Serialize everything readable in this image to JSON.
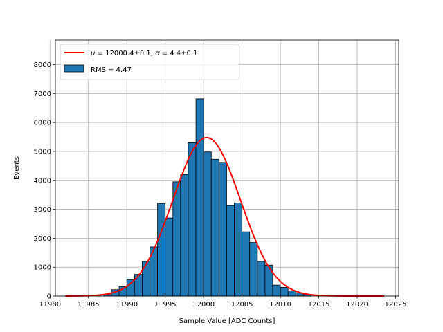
{
  "chart_data": {
    "type": "bar",
    "title": "",
    "xlabel": "Sample Value [ADC Counts]",
    "ylabel": "Events",
    "xlim": [
      11980.7,
      12025.4
    ],
    "ylim": [
      0,
      8850
    ],
    "xticks": [
      11980,
      11985,
      11990,
      11995,
      12000,
      12005,
      12010,
      12015,
      12020,
      12025
    ],
    "yticks": [
      0,
      1000,
      2000,
      3000,
      4000,
      5000,
      6000,
      7000,
      8000
    ],
    "grid": true,
    "legend_position": "top-left",
    "histogram": {
      "name": "RMS = 4.47",
      "color": "#1f77b4",
      "edge_color": "#000000",
      "bin_width": 1,
      "bin_edges_start": 11987,
      "counts": [
        50,
        220,
        330,
        560,
        750,
        1200,
        1700,
        3200,
        2700,
        3950,
        4200,
        5300,
        6820,
        4980,
        4730,
        4620,
        3130,
        3220,
        2220,
        1850,
        1200,
        1070,
        380,
        300,
        180,
        110,
        60
      ]
    },
    "fit": {
      "name_parts": {
        "mu_symbol": "μ",
        "mu_value": " = 12000.4±0.1, ",
        "sigma_symbol": "σ",
        "sigma_value": " = 4.4±0.1"
      },
      "color": "#ff0000",
      "mu": 12000.4,
      "sigma": 4.4,
      "amplitude": 5480,
      "x_range": [
        11982,
        12023.5
      ]
    }
  }
}
